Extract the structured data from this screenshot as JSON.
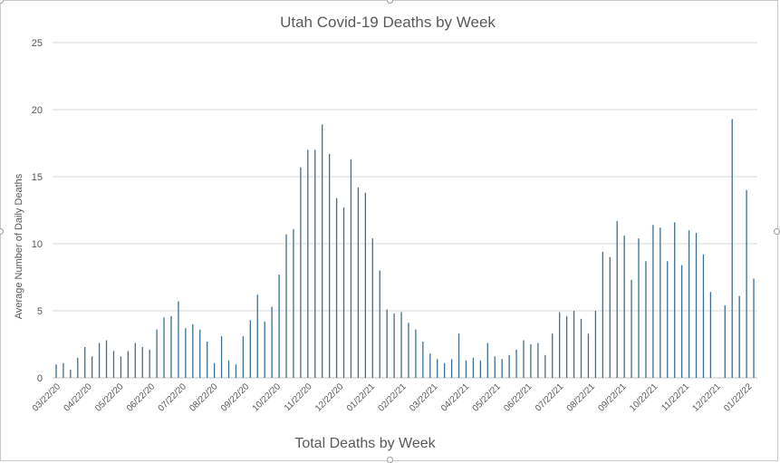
{
  "chart_data": {
    "type": "bar",
    "title": "Utah Covid-19 Deaths by Week",
    "xlabel": "Total Deaths by Week",
    "ylabel": "Average Number of Daily Deaths",
    "ylim": [
      0,
      25
    ],
    "yticks": [
      0,
      5,
      10,
      15,
      20,
      25
    ],
    "grid": true,
    "legend": "none",
    "bar_color": "#3b6e8f",
    "x_tick_labels": [
      "03/22/20",
      "04/22/20",
      "05/22/20",
      "06/22/20",
      "07/22/20",
      "08/22/20",
      "09/22/20",
      "10/22/20",
      "11/22/20",
      "12/22/20",
      "01/22/21",
      "02/22/21",
      "03/22/21",
      "04/22/21",
      "05/22/21",
      "06/22/21",
      "07/22/21",
      "08/22/21",
      "09/22/21",
      "10/22/21",
      "11/22/21",
      "12/22/21",
      "01/22/22"
    ],
    "values": [
      1.0,
      1.1,
      0.6,
      1.5,
      2.3,
      1.6,
      2.6,
      2.8,
      2.0,
      1.6,
      2.0,
      2.6,
      2.3,
      2.1,
      3.6,
      4.5,
      4.6,
      5.7,
      3.7,
      4.0,
      3.6,
      2.7,
      1.1,
      3.1,
      1.3,
      1.0,
      3.1,
      4.3,
      6.2,
      4.2,
      5.3,
      7.7,
      10.7,
      11.1,
      15.7,
      17.0,
      17.0,
      18.9,
      16.7,
      13.4,
      12.7,
      16.3,
      14.2,
      13.8,
      10.4,
      8.0,
      5.1,
      4.8,
      4.9,
      4.1,
      3.6,
      2.7,
      1.8,
      1.4,
      1.1,
      1.4,
      3.3,
      1.3,
      1.5,
      1.3,
      2.6,
      1.6,
      1.4,
      1.7,
      2.1,
      2.8,
      2.5,
      2.6,
      1.7,
      3.3,
      4.9,
      4.6,
      5.0,
      4.4,
      3.3,
      5.0,
      9.4,
      9.0,
      11.7,
      10.6,
      7.3,
      10.4,
      8.7,
      11.4,
      11.2,
      8.7,
      11.6,
      8.4,
      11.0,
      10.8,
      9.2,
      6.4,
      0,
      5.4,
      19.3,
      6.1,
      14.0,
      7.4
    ]
  }
}
